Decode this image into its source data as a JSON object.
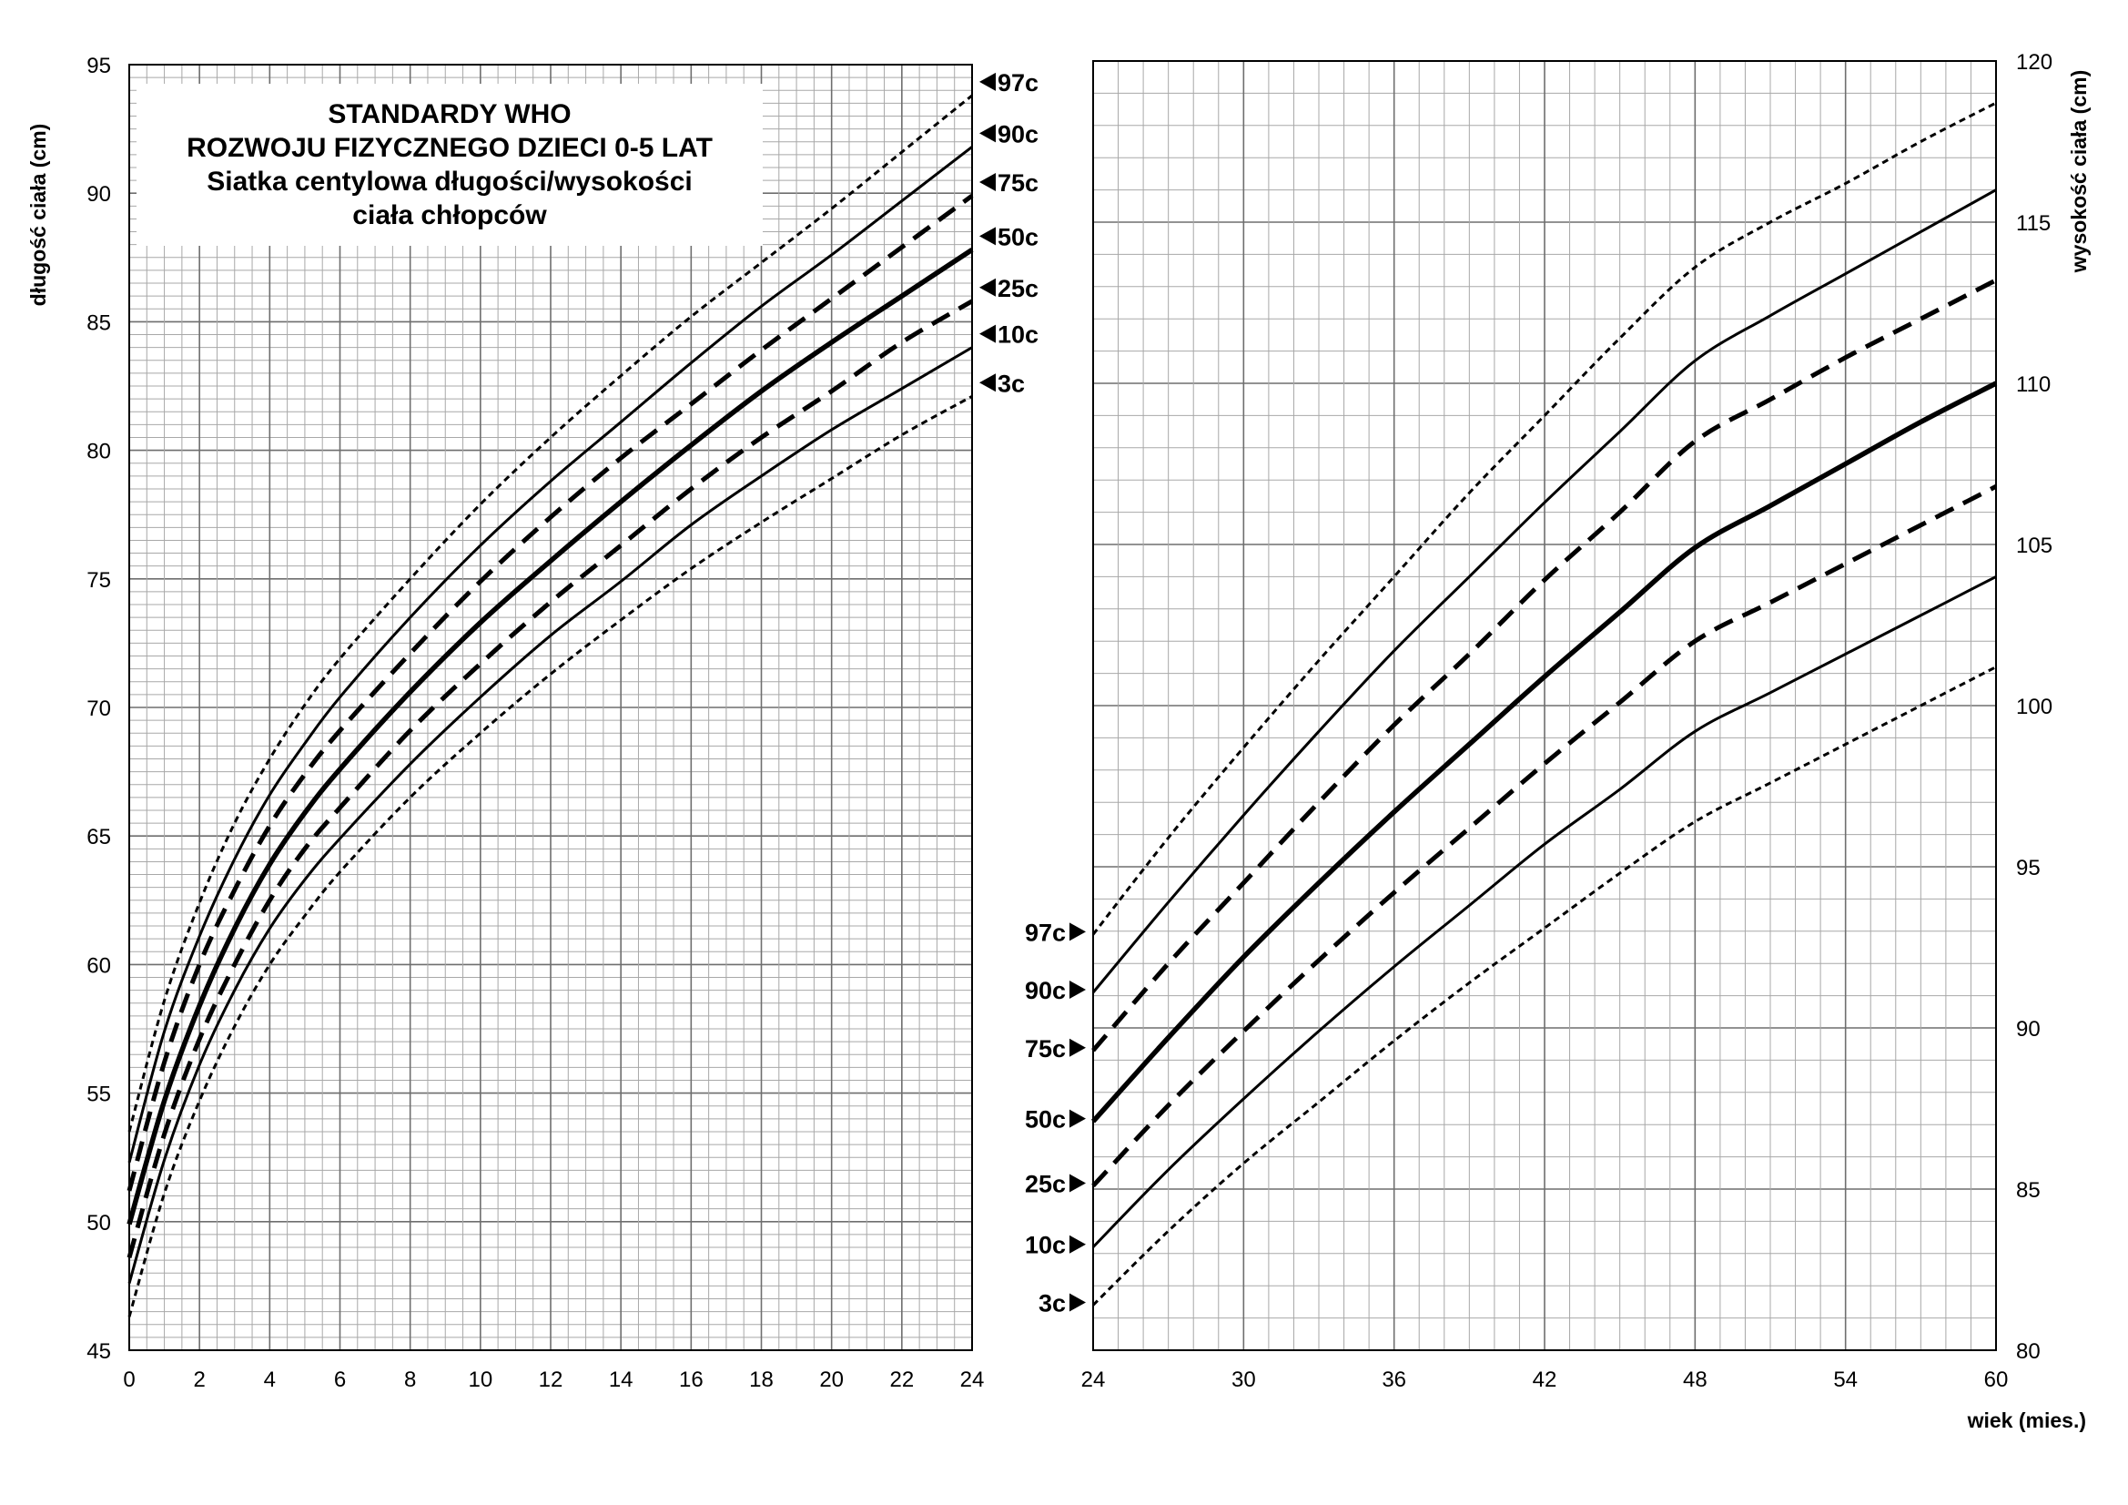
{
  "chart_data": [
    {
      "type": "line",
      "panel": "left",
      "title": [
        "STANDARDY WHO",
        "ROZWOJU FIZYCZNEGO DZIECI 0-5 LAT",
        "Siatka centylowa długości/wysokości",
        "ciała chłopców"
      ],
      "ylabel": "długość ciała (cm)",
      "xlim": [
        0,
        24
      ],
      "ylim": [
        45,
        95
      ],
      "xticks": [
        0,
        2,
        4,
        6,
        8,
        10,
        12,
        14,
        16,
        18,
        20,
        22,
        24
      ],
      "yticks": [
        45,
        50,
        55,
        60,
        65,
        70,
        75,
        80,
        85,
        90,
        95
      ],
      "x": [
        0,
        1,
        2,
        3,
        4,
        5,
        6,
        8,
        10,
        12,
        14,
        16,
        18,
        20,
        22,
        24
      ],
      "series": [
        {
          "name": "97c",
          "style": "dotted",
          "values": [
            53.5,
            58.6,
            62.4,
            65.5,
            68.0,
            70.1,
            71.9,
            75.0,
            77.9,
            80.5,
            82.9,
            85.2,
            87.3,
            89.4,
            91.6,
            93.8
          ]
        },
        {
          "name": "90c",
          "style": "solid",
          "values": [
            52.3,
            57.4,
            61.1,
            64.1,
            66.6,
            68.6,
            70.4,
            73.5,
            76.3,
            78.8,
            81.1,
            83.4,
            85.6,
            87.6,
            89.7,
            91.8
          ]
        },
        {
          "name": "75c",
          "style": "dashed",
          "values": [
            51.2,
            56.2,
            60.0,
            62.9,
            65.4,
            67.4,
            69.1,
            72.1,
            74.9,
            77.4,
            79.7,
            81.8,
            83.9,
            85.9,
            87.9,
            89.9
          ]
        },
        {
          "name": "50c",
          "style": "bold",
          "values": [
            49.9,
            54.7,
            58.4,
            61.4,
            63.9,
            65.9,
            67.6,
            70.6,
            73.3,
            75.7,
            78.0,
            80.2,
            82.3,
            84.2,
            86.0,
            87.8
          ]
        },
        {
          "name": "25c",
          "style": "dashed",
          "values": [
            48.6,
            53.4,
            57.1,
            60.0,
            62.5,
            64.5,
            66.1,
            69.1,
            71.7,
            74.1,
            76.3,
            78.5,
            80.5,
            82.3,
            84.2,
            85.8
          ]
        },
        {
          "name": "10c",
          "style": "solid",
          "values": [
            47.6,
            52.4,
            56.1,
            59.0,
            61.4,
            63.3,
            64.9,
            67.8,
            70.4,
            72.8,
            74.9,
            77.1,
            79.0,
            80.8,
            82.4,
            84.0
          ]
        },
        {
          "name": "3c",
          "style": "dotted",
          "values": [
            46.3,
            51.1,
            54.7,
            57.6,
            60.0,
            61.9,
            63.6,
            66.5,
            69.0,
            71.3,
            73.4,
            75.4,
            77.2,
            78.9,
            80.6,
            82.1
          ]
        }
      ]
    },
    {
      "type": "line",
      "panel": "right",
      "ylabel": "wysokość ciała (cm)",
      "xlabel": "wiek (mies.)",
      "xlim": [
        24,
        60
      ],
      "ylim": [
        80,
        120
      ],
      "xticks": [
        24,
        30,
        36,
        42,
        48,
        54,
        60
      ],
      "yticks": [
        80,
        85,
        90,
        95,
        100,
        105,
        110,
        115,
        120
      ],
      "x": [
        24,
        27,
        30,
        33,
        36,
        39,
        42,
        45,
        48,
        51,
        54,
        57,
        60
      ],
      "series": [
        {
          "name": "97c",
          "style": "dotted",
          "values": [
            92.9,
            95.9,
            98.7,
            101.4,
            104.0,
            106.6,
            109.0,
            111.4,
            113.6,
            115.0,
            116.2,
            117.5,
            118.7
          ]
        },
        {
          "name": "90c",
          "style": "solid",
          "values": [
            91.1,
            93.9,
            96.6,
            99.2,
            101.7,
            104.0,
            106.3,
            108.5,
            110.7,
            112.1,
            113.4,
            114.7,
            116.0
          ]
        },
        {
          "name": "75c",
          "style": "dashed",
          "values": [
            89.3,
            92.0,
            94.5,
            97.0,
            99.4,
            101.6,
            103.9,
            106.0,
            108.2,
            109.5,
            110.8,
            112.0,
            113.2
          ]
        },
        {
          "name": "50c",
          "style": "bold",
          "values": [
            87.1,
            89.7,
            92.2,
            94.5,
            96.7,
            98.8,
            100.9,
            102.9,
            104.9,
            106.2,
            107.5,
            108.8,
            110.0
          ]
        },
        {
          "name": "25c",
          "style": "dashed",
          "values": [
            85.1,
            87.6,
            89.9,
            92.1,
            94.2,
            96.2,
            98.2,
            100.1,
            102.0,
            103.2,
            104.4,
            105.6,
            106.8
          ]
        },
        {
          "name": "10c",
          "style": "solid",
          "values": [
            83.2,
            85.6,
            87.8,
            89.9,
            91.9,
            93.8,
            95.7,
            97.4,
            99.2,
            100.4,
            101.6,
            102.8,
            104.0
          ]
        },
        {
          "name": "3c",
          "style": "dotted",
          "values": [
            81.4,
            83.7,
            85.8,
            87.7,
            89.6,
            91.4,
            93.1,
            94.8,
            96.4,
            97.6,
            98.8,
            100.0,
            101.2
          ]
        }
      ]
    }
  ]
}
